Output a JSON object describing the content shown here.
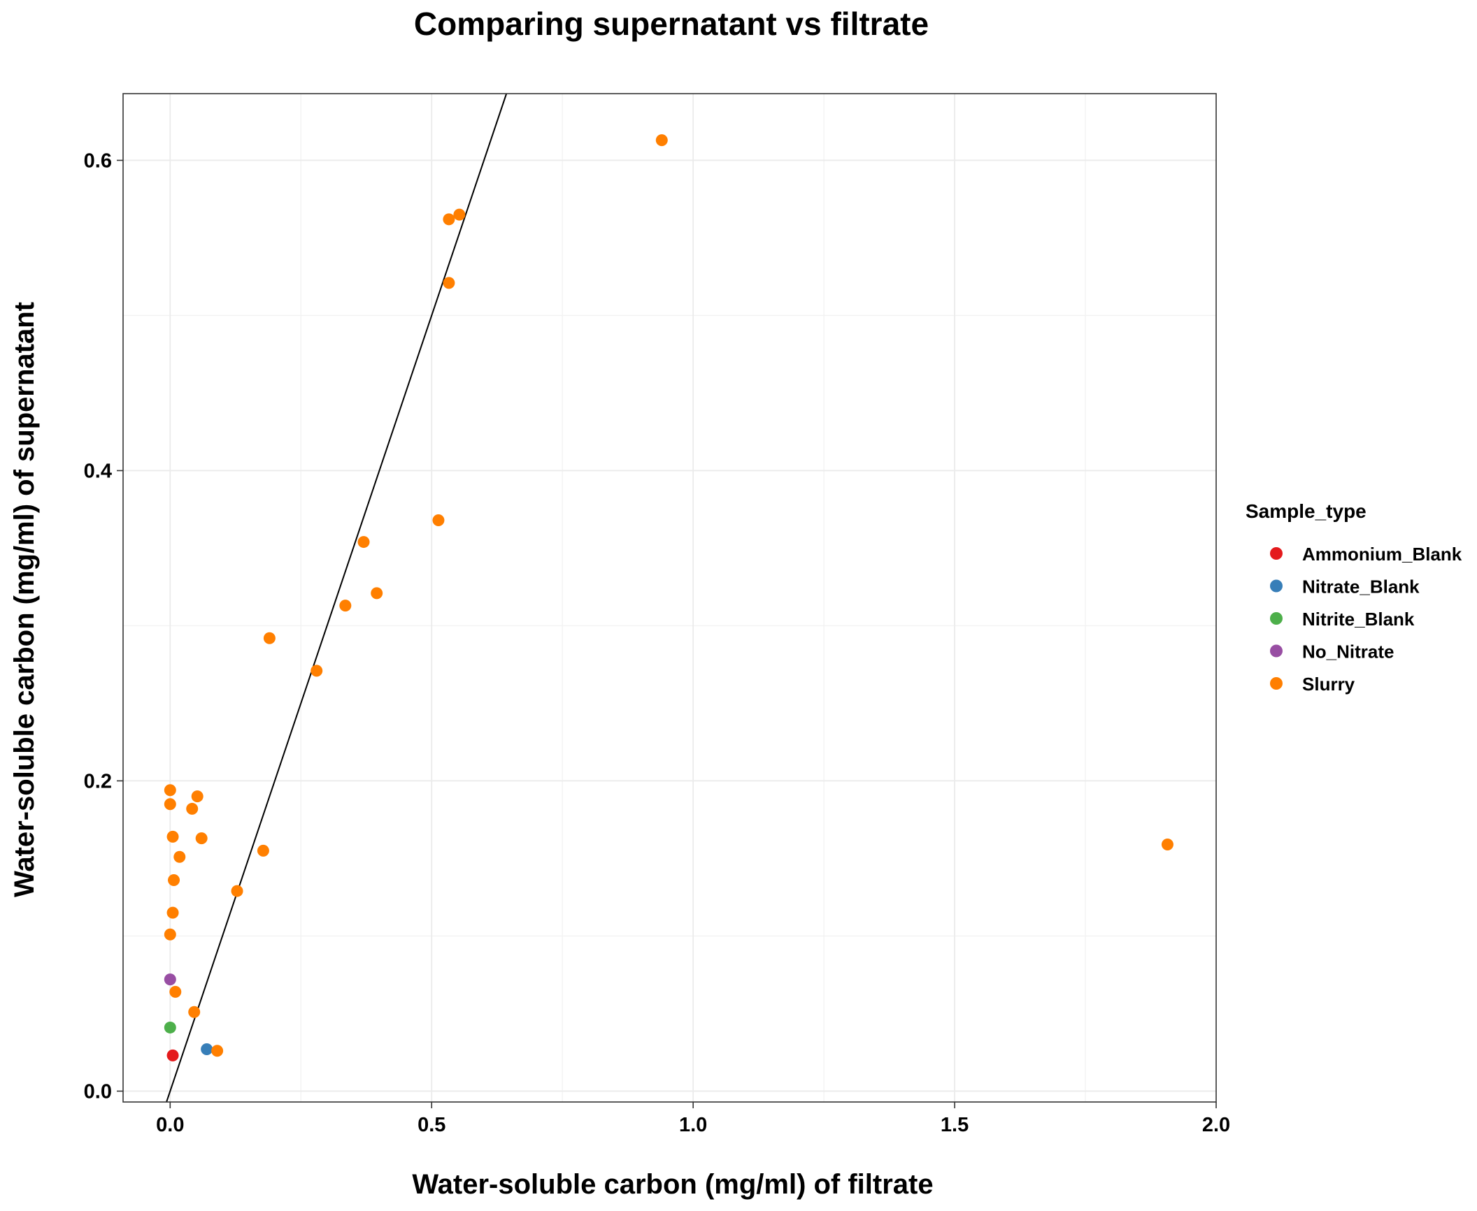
{
  "chart_data": {
    "type": "scatter",
    "title": "Comparing supernatant vs filtrate",
    "xlabel": "Water-soluble carbon (mg/ml) of filtrate",
    "ylabel": "Water-soluble carbon (mg/ml) of supernatant",
    "xlim": [
      -0.09,
      2.0
    ],
    "ylim": [
      -0.007,
      0.643
    ],
    "x_ticks": [
      0.0,
      0.5,
      1.0,
      1.5,
      2.0
    ],
    "x_tick_labels": [
      "0.0",
      "0.5",
      "1.0",
      "1.5",
      "2.0"
    ],
    "y_ticks": [
      0.0,
      0.2,
      0.4,
      0.6
    ],
    "y_tick_labels": [
      "0.0",
      "0.2",
      "0.4",
      "0.6"
    ],
    "grid": true,
    "legend": {
      "title": "Sample_type",
      "position": "right"
    },
    "reference_line": {
      "slope": 1,
      "intercept": 0
    },
    "series": [
      {
        "name": "Ammonium_Blank",
        "color": "#E41A1C",
        "points": [
          [
            0.005,
            0.023
          ]
        ]
      },
      {
        "name": "Nitrate_Blank",
        "color": "#377EB8",
        "points": [
          [
            0.07,
            0.027
          ]
        ]
      },
      {
        "name": "Nitrite_Blank",
        "color": "#4DAF4A",
        "points": [
          [
            0.0,
            0.041
          ]
        ]
      },
      {
        "name": "No_Nitrate",
        "color": "#984EA3",
        "points": [
          [
            0.0,
            0.072
          ]
        ]
      },
      {
        "name": "Slurry",
        "color": "#FF7F00",
        "points": [
          [
            0.94,
            0.613
          ],
          [
            0.553,
            0.565
          ],
          [
            0.533,
            0.562
          ],
          [
            0.533,
            0.521
          ],
          [
            0.513,
            0.368
          ],
          [
            0.37,
            0.354
          ],
          [
            0.395,
            0.321
          ],
          [
            0.335,
            0.313
          ],
          [
            0.19,
            0.292
          ],
          [
            0.28,
            0.271
          ],
          [
            0.0,
            0.194
          ],
          [
            0.052,
            0.19
          ],
          [
            0.0,
            0.185
          ],
          [
            0.042,
            0.182
          ],
          [
            0.005,
            0.164
          ],
          [
            0.06,
            0.163
          ],
          [
            1.907,
            0.159
          ],
          [
            0.178,
            0.155
          ],
          [
            0.018,
            0.151
          ],
          [
            0.007,
            0.136
          ],
          [
            0.128,
            0.129
          ],
          [
            0.005,
            0.115
          ],
          [
            0.0,
            0.101
          ],
          [
            0.01,
            0.064
          ],
          [
            0.046,
            0.051
          ],
          [
            0.09,
            0.026
          ]
        ]
      }
    ]
  }
}
